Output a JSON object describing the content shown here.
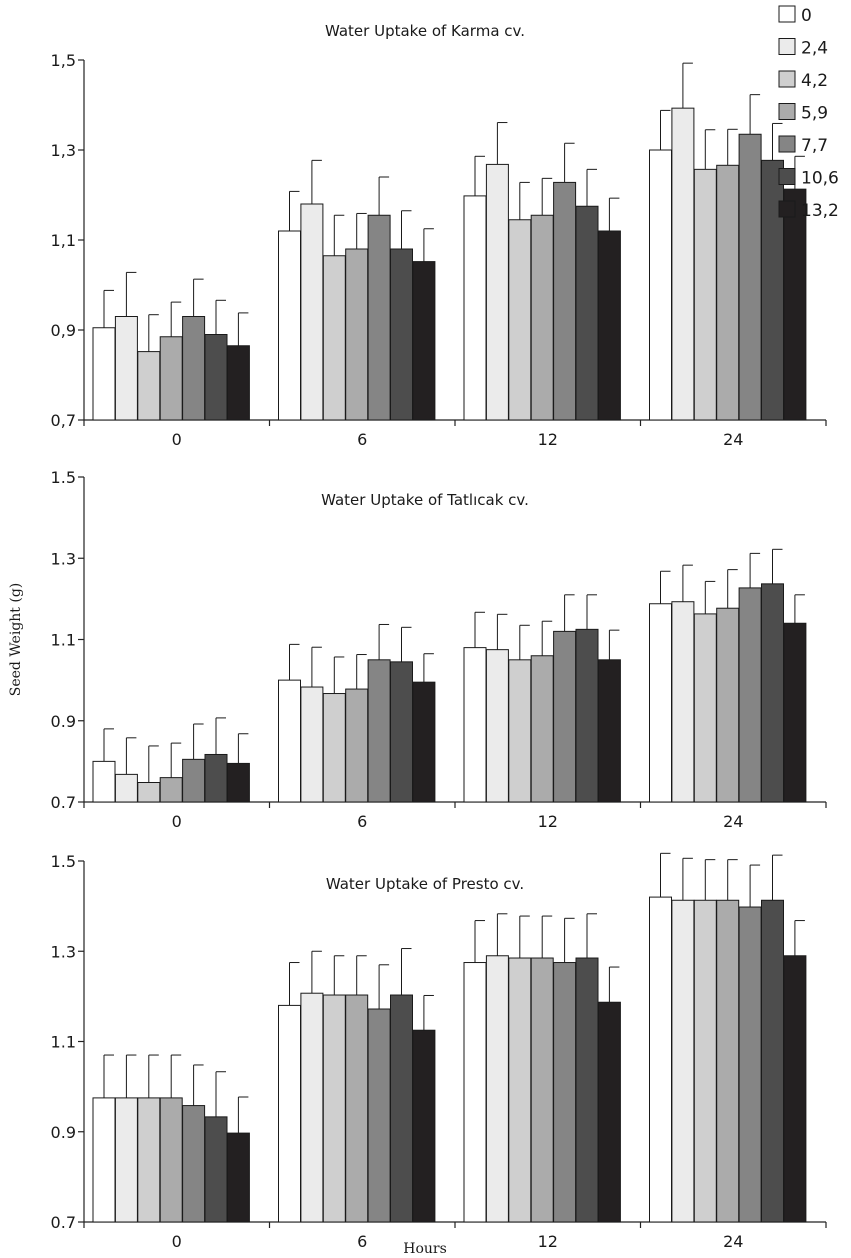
{
  "chart_data": [
    {
      "type": "bar",
      "title": "Water Uptake of Karma cv.",
      "categories": [
        "0",
        "6",
        "12",
        "24"
      ],
      "ylim": [
        0.7,
        1.5
      ],
      "ytick_labels": [
        "0,7",
        "0,9",
        "1,1",
        "1,3",
        "1,5"
      ],
      "series": [
        {
          "name": "0",
          "color": "#ffffff",
          "values": [
            0.905,
            1.12,
            1.198,
            1.3
          ],
          "errors": [
            0.083,
            0.088,
            0.088,
            0.088
          ]
        },
        {
          "name": "2,4",
          "color": "#ebebeb",
          "values": [
            0.93,
            1.18,
            1.268,
            1.393
          ],
          "errors": [
            0.098,
            0.097,
            0.093,
            0.1
          ]
        },
        {
          "name": "4,2",
          "color": "#cfcfcf",
          "values": [
            0.852,
            1.065,
            1.145,
            1.257
          ],
          "errors": [
            0.082,
            0.09,
            0.083,
            0.088
          ]
        },
        {
          "name": "5,9",
          "color": "#ababab",
          "values": [
            0.885,
            1.08,
            1.155,
            1.266
          ],
          "errors": [
            0.077,
            0.079,
            0.082,
            0.08
          ]
        },
        {
          "name": "7,7",
          "color": "#858585",
          "values": [
            0.93,
            1.155,
            1.228,
            1.335
          ],
          "errors": [
            0.083,
            0.085,
            0.087,
            0.088
          ]
        },
        {
          "name": "10,6",
          "color": "#4d4d4d",
          "values": [
            0.89,
            1.08,
            1.175,
            1.277
          ],
          "errors": [
            0.076,
            0.085,
            0.082,
            0.082
          ]
        },
        {
          "name": "13,2",
          "color": "#232021",
          "values": [
            0.865,
            1.052,
            1.12,
            1.213
          ],
          "errors": [
            0.073,
            0.073,
            0.073,
            0.073
          ]
        }
      ]
    },
    {
      "type": "bar",
      "title": "Water Uptake of Tatlıcak cv.",
      "categories": [
        "0",
        "6",
        "12",
        "24"
      ],
      "ylim": [
        0.7,
        1.5
      ],
      "ytick_labels": [
        "0.7",
        "0.9",
        "1.1",
        "1.3",
        "1.5"
      ],
      "ylabel": "Seed Weight (g)",
      "series": [
        {
          "name": "0",
          "color": "#ffffff",
          "values": [
            0.8,
            1.0,
            1.08,
            1.188
          ],
          "errors": [
            0.08,
            0.088,
            0.087,
            0.08
          ]
        },
        {
          "name": "2,4",
          "color": "#ebebeb",
          "values": [
            0.768,
            0.983,
            1.075,
            1.193
          ],
          "errors": [
            0.09,
            0.098,
            0.087,
            0.09
          ]
        },
        {
          "name": "4,2",
          "color": "#cfcfcf",
          "values": [
            0.748,
            0.967,
            1.05,
            1.163
          ],
          "errors": [
            0.09,
            0.09,
            0.085,
            0.08
          ]
        },
        {
          "name": "5,9",
          "color": "#ababab",
          "values": [
            0.76,
            0.978,
            1.06,
            1.177
          ],
          "errors": [
            0.085,
            0.085,
            0.085,
            0.095
          ]
        },
        {
          "name": "7,7",
          "color": "#858585",
          "values": [
            0.805,
            1.05,
            1.12,
            1.227
          ],
          "errors": [
            0.087,
            0.087,
            0.09,
            0.085
          ]
        },
        {
          "name": "10,6",
          "color": "#4d4d4d",
          "values": [
            0.817,
            1.045,
            1.125,
            1.237
          ],
          "errors": [
            0.09,
            0.085,
            0.085,
            0.085
          ]
        },
        {
          "name": "13,2",
          "color": "#232021",
          "values": [
            0.795,
            0.995,
            1.05,
            1.14
          ],
          "errors": [
            0.073,
            0.07,
            0.073,
            0.07
          ]
        }
      ]
    },
    {
      "type": "bar",
      "title": "Water Uptake of Presto cv.",
      "categories": [
        "0",
        "6",
        "12",
        "24"
      ],
      "ylim": [
        0.7,
        1.5
      ],
      "ytick_labels": [
        "0.7",
        "0.9",
        "1.1",
        "1.3",
        "1.5"
      ],
      "xlabel": "Hours",
      "series": [
        {
          "name": "0",
          "color": "#ffffff",
          "values": [
            0.975,
            1.18,
            1.275,
            1.42
          ],
          "errors": [
            0.095,
            0.095,
            0.093,
            0.097
          ]
        },
        {
          "name": "2,4",
          "color": "#ebebeb",
          "values": [
            0.975,
            1.207,
            1.29,
            1.413
          ],
          "errors": [
            0.095,
            0.093,
            0.093,
            0.093
          ]
        },
        {
          "name": "4,2",
          "color": "#cfcfcf",
          "values": [
            0.975,
            1.203,
            1.285,
            1.413
          ],
          "errors": [
            0.095,
            0.087,
            0.093,
            0.09
          ]
        },
        {
          "name": "5,9",
          "color": "#ababab",
          "values": [
            0.975,
            1.203,
            1.285,
            1.413
          ],
          "errors": [
            0.095,
            0.087,
            0.093,
            0.09
          ]
        },
        {
          "name": "7,7",
          "color": "#858585",
          "values": [
            0.958,
            1.172,
            1.275,
            1.398
          ],
          "errors": [
            0.09,
            0.098,
            0.098,
            0.093
          ]
        },
        {
          "name": "10,6",
          "color": "#4d4d4d",
          "values": [
            0.933,
            1.203,
            1.285,
            1.413
          ],
          "errors": [
            0.1,
            0.103,
            0.098,
            0.1
          ]
        },
        {
          "name": "13,2",
          "color": "#232021",
          "values": [
            0.897,
            1.125,
            1.187,
            1.29
          ],
          "errors": [
            0.08,
            0.077,
            0.078,
            0.078
          ]
        }
      ]
    }
  ]
}
